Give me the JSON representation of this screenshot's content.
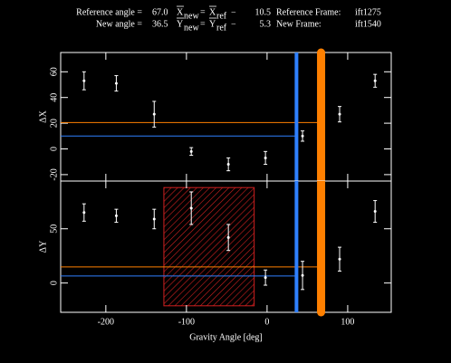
{
  "header": {
    "reference_angle": {
      "text": "Reference angle =",
      "value": 67,
      "label": "67.0",
      "color": "#ff8000"
    },
    "new_angle": {
      "text": "New angle =",
      "value": 36.5,
      "label": "36.5",
      "color": "#2f80ff"
    },
    "x_offset": {
      "symbol": "X",
      "new": "new",
      "ref": "ref",
      "operator": "−",
      "value": 10.5
    },
    "y_offset": {
      "symbol": "Y",
      "new": "new",
      "ref": "ref",
      "operator": "−",
      "value": 5.3
    },
    "reference_frame": {
      "text": "Reference Frame:",
      "value": "ift1275"
    },
    "new_frame": {
      "text": "New Frame:",
      "value": "ift1540"
    }
  },
  "chart_data": [
    {
      "type": "scatter",
      "ylabel": "ΔX",
      "x": [
        -227,
        -187,
        -140,
        -94,
        -48,
        -2,
        44,
        90,
        134
      ],
      "values": [
        53,
        51,
        27,
        -2,
        -12,
        -7,
        10,
        27,
        53
      ],
      "errors": [
        7,
        6,
        10,
        3,
        5,
        5,
        4,
        6,
        5
      ],
      "xlim": [
        -256,
        154
      ],
      "xticks": [
        -200,
        -100,
        0,
        100
      ],
      "ylim": [
        -25,
        75
      ],
      "yticks": [
        -20,
        0,
        20,
        40,
        60
      ],
      "reference_level": 20.5,
      "new_level": 10
    },
    {
      "type": "scatter",
      "ylabel": "ΔY",
      "xlabel": "Gravity Angle [deg]",
      "x": [
        -227,
        -187,
        -140,
        -94,
        -48,
        -2,
        44,
        90,
        134
      ],
      "values": [
        65,
        62,
        59,
        69,
        42,
        5,
        7,
        22,
        66
      ],
      "errors": [
        8,
        6,
        9,
        15,
        12,
        7,
        13,
        11,
        10
      ],
      "xlim": [
        -256,
        154
      ],
      "xticks": [
        -200,
        -100,
        0,
        100
      ],
      "ylim": [
        -27,
        94
      ],
      "yticks": [
        0,
        50
      ],
      "reference_level": 14.8,
      "new_level": 6.5,
      "shaded_region": {
        "x": [
          -128,
          -16
        ],
        "y": [
          -21,
          88
        ],
        "color": "#d02020"
      }
    }
  ]
}
